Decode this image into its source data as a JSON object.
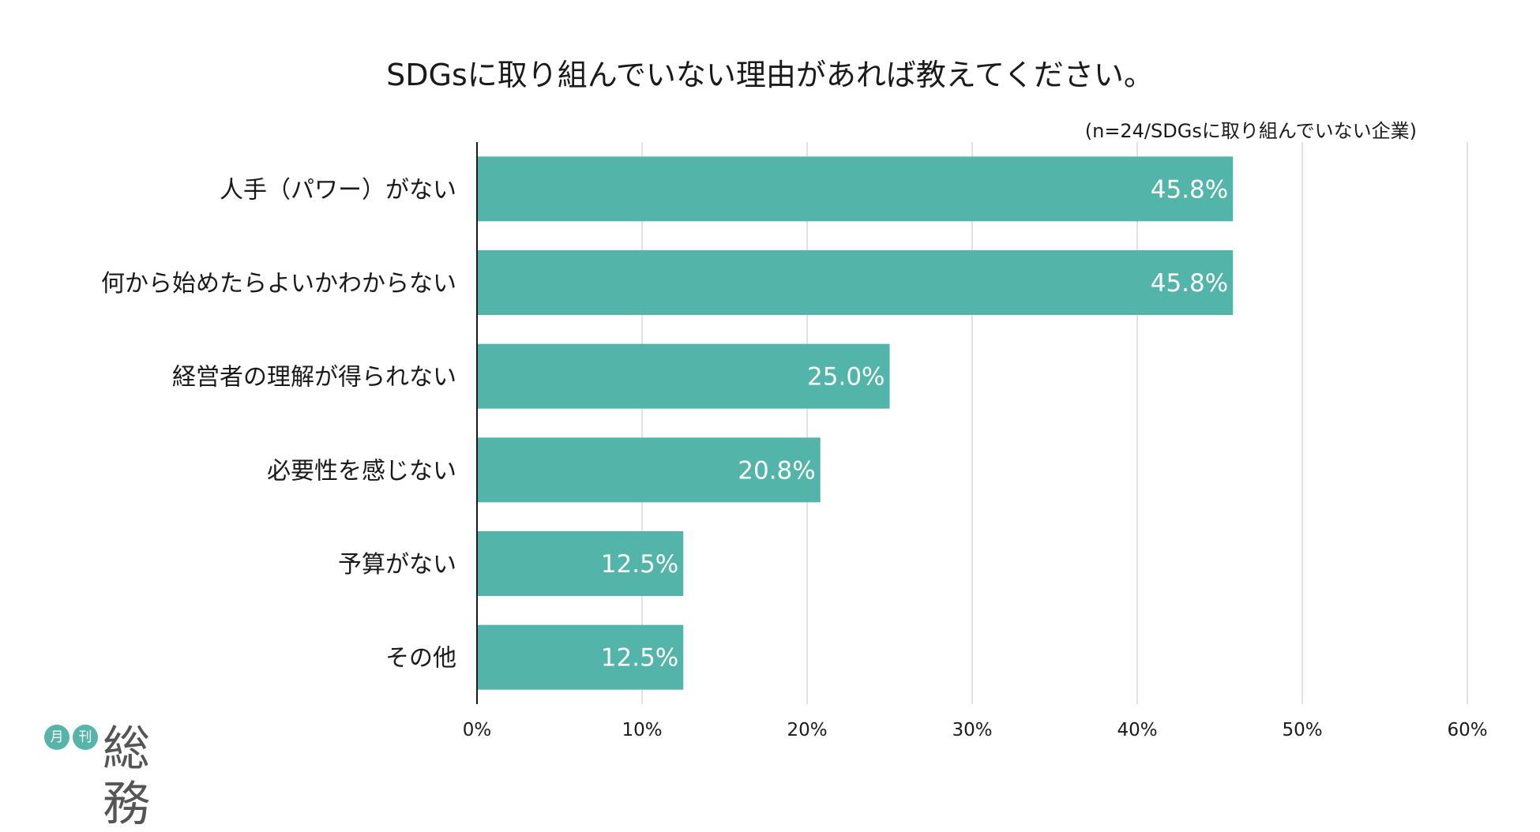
{
  "chart_data": {
    "type": "bar",
    "orientation": "horizontal",
    "title": "SDGsに取り組んでいない理由があれば教えてください。",
    "note": "(n=24/SDGsに取り組んでいない企業)",
    "categories": [
      "人手（パワー）がない",
      "何から始めたらよいかわからない",
      "経営者の理解が得られない",
      "必要性を感じない",
      "予算がない",
      "その他"
    ],
    "values": [
      45.8,
      45.8,
      25.0,
      20.8,
      12.5,
      12.5
    ],
    "value_labels": [
      "45.8%",
      "45.8%",
      "25.0%",
      "20.8%",
      "12.5%",
      "12.5%"
    ],
    "xlim": [
      0,
      60
    ],
    "ticks": [
      0,
      10,
      20,
      30,
      40,
      50,
      60
    ],
    "tick_labels": [
      "0%",
      "10%",
      "20%",
      "30%",
      "40%",
      "50%",
      "60%"
    ],
    "grid": true,
    "bar_color": "#53b4aa"
  },
  "logo": {
    "small1": "月",
    "small2": "刊",
    "name": "総務"
  }
}
